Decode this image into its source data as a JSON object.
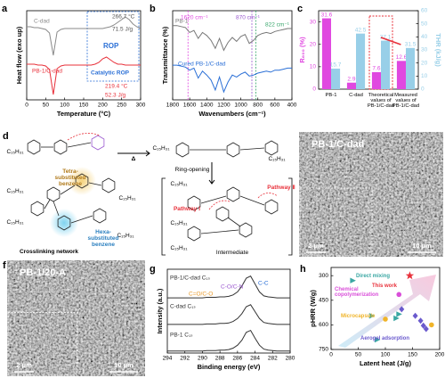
{
  "chart_data": [
    {
      "panel": "a",
      "type": "line",
      "xlabel": "Temperature (°C)",
      "ylabel": "Heat flow (exo up)",
      "x": [
        0,
        10,
        20,
        30,
        40,
        50,
        60,
        70,
        80,
        90,
        100,
        110,
        120,
        130,
        140,
        150,
        160,
        170,
        180,
        190,
        200,
        210,
        220,
        230,
        240,
        250,
        260,
        270,
        280,
        290,
        300
      ],
      "xlim": [
        0,
        300
      ],
      "xticks": [
        0,
        50,
        100,
        150,
        200,
        250,
        300
      ],
      "ylim": [
        0,
        10
      ],
      "series": [
        {
          "name": "C-dad",
          "color": "#8a8a8a",
          "values": [
            8.2,
            8.2,
            8.1,
            8.1,
            8.0,
            7.9,
            7.5,
            5.0,
            7.6,
            7.9,
            8.0,
            8.0,
            8.0,
            8.0,
            8.0,
            8.0,
            8.0,
            8.0,
            8.0,
            8.0,
            8.0,
            8.1,
            8.2,
            8.4,
            8.7,
            9.0,
            9.3,
            9.0,
            8.5,
            8.2,
            8.0
          ]
        },
        {
          "name": "PB-1/C-dad",
          "color": "#e8303a",
          "values": [
            4.0,
            4.0,
            4.0,
            3.9,
            3.9,
            3.8,
            3.4,
            0.6,
            3.5,
            3.8,
            3.9,
            3.9,
            3.9,
            3.9,
            3.9,
            3.9,
            3.9,
            3.9,
            4.0,
            4.2,
            4.6,
            4.8,
            4.5,
            4.2,
            4.0,
            4.0,
            3.9,
            3.9,
            3.9,
            3.9,
            3.9
          ]
        }
      ],
      "annotations": [
        {
          "text": "266.7 °C",
          "color": "#555555"
        },
        {
          "text": "71.5 J/g",
          "color": "#555555"
        },
        {
          "text": "219.4 °C",
          "color": "#e8303a"
        },
        {
          "text": "52.3 J/g",
          "color": "#e8303a"
        },
        {
          "text": "ROP",
          "color": "#2a6fd6"
        },
        {
          "text": "Catalytic ROP",
          "color": "#2a6fd6"
        }
      ]
    },
    {
      "panel": "b",
      "type": "line",
      "xlabel": "Wavenumbers (cm⁻¹)",
      "ylabel": "Transmittance (%)",
      "x": [
        1800,
        1750,
        1700,
        1650,
        1600,
        1550,
        1500,
        1450,
        1400,
        1350,
        1300,
        1250,
        1200,
        1150,
        1100,
        1050,
        1000,
        950,
        900,
        850,
        800,
        750,
        700,
        650,
        600,
        550,
        500,
        450,
        400
      ],
      "xlim": [
        1800,
        400
      ],
      "xticks": [
        1800,
        1600,
        1400,
        1200,
        1000,
        800,
        600,
        400
      ],
      "ylim": [
        0,
        9
      ],
      "markers": [
        1620,
        870,
        822
      ],
      "marker_colors": [
        "#e048e0",
        "#9b59d0",
        "#3aa76d"
      ],
      "series": [
        {
          "name": "PB-1",
          "color": "#777777",
          "values": [
            7.5,
            7.5,
            7.4,
            7.3,
            6.8,
            7.0,
            6.2,
            6.8,
            6.5,
            6.0,
            5.2,
            6.2,
            5.0,
            5.8,
            6.3,
            5.9,
            6.4,
            6.6,
            5.7,
            6.0,
            6.5,
            6.7,
            6.8,
            6.7,
            6.9,
            7.0,
            7.1,
            7.2,
            7.2
          ]
        },
        {
          "name": "Cured PB-1/C-dad",
          "color": "#2a6fd6",
          "values": [
            3.5,
            3.5,
            3.4,
            3.3,
            3.0,
            3.2,
            2.2,
            2.9,
            2.5,
            2.0,
            1.0,
            2.3,
            0.8,
            1.8,
            2.5,
            2.3,
            2.6,
            2.8,
            2.4,
            2.5,
            2.7,
            2.8,
            2.9,
            2.8,
            3.0,
            3.0,
            3.1,
            3.2,
            3.2
          ]
        }
      ],
      "annotations": [
        {
          "text": "1620 cm⁻¹",
          "color": "#e048e0"
        },
        {
          "text": "870 cm⁻¹",
          "color": "#9b59d0"
        },
        {
          "text": "822 cm⁻¹",
          "color": "#3aa76d"
        }
      ]
    },
    {
      "panel": "c",
      "type": "bar",
      "categories": [
        "PB-1",
        "C-dad",
        "Theoretical values of PB-1/C-dad",
        "Measured values of PB-1/C-dad"
      ],
      "ylim": [
        0,
        35
      ],
      "yticks": [
        0,
        10,
        20,
        30
      ],
      "y2lim": [
        0,
        60
      ],
      "y2ticks": [
        0,
        10,
        20,
        30,
        40,
        50,
        60
      ],
      "series": [
        {
          "name": "R₆₀₀ (%)",
          "color": "#e048e0",
          "values": [
            31.6,
            2.9,
            7.6,
            12.6
          ]
        },
        {
          "name": "THR (kJ/g)",
          "color": "#98cfe8",
          "axis": "y2",
          "values": [
            15.7,
            42.5,
            37.1,
            31.5
          ]
        }
      ]
    },
    {
      "panel": "g",
      "type": "line",
      "xlabel": "Binding energy (eV)",
      "ylabel": "Intensity (a.u.)",
      "x": [
        294,
        293.5,
        293,
        292.5,
        292,
        291.5,
        291,
        290.5,
        290,
        289.5,
        289,
        288.5,
        288,
        287.5,
        287,
        286.5,
        286,
        285.5,
        285,
        284.5,
        284,
        283.5,
        283,
        282.5,
        282,
        281.5,
        281,
        280.5,
        280
      ],
      "xlim": [
        294,
        280
      ],
      "xticks": [
        294,
        292,
        290,
        288,
        286,
        284,
        282,
        280
      ],
      "ylim": [
        0,
        8.5
      ],
      "series": [
        {
          "name": "PB-1/C-dad C₁ₛ",
          "color": "#333333",
          "values": [
            5.6,
            5.6,
            5.6,
            5.6,
            5.6,
            5.6,
            5.6,
            5.6,
            5.6,
            5.65,
            5.65,
            5.65,
            5.7,
            5.7,
            5.75,
            5.9,
            6.2,
            6.8,
            7.6,
            7.8,
            7.0,
            6.2,
            5.8,
            5.7,
            5.65,
            5.6,
            5.6,
            5.6,
            5.6
          ]
        },
        {
          "name": "C-dad C₁ₛ",
          "color": "#333333",
          "values": [
            2.9,
            2.9,
            2.9,
            2.9,
            2.9,
            2.9,
            2.9,
            2.9,
            2.9,
            2.95,
            2.95,
            2.95,
            3.0,
            3.0,
            3.05,
            3.2,
            3.5,
            4.0,
            4.7,
            4.9,
            4.2,
            3.5,
            3.1,
            3.0,
            2.95,
            2.9,
            2.9,
            2.9,
            2.9
          ]
        },
        {
          "name": "PB-1 C₁ₛ",
          "color": "#333333",
          "values": [
            0.2,
            0.2,
            0.2,
            0.2,
            0.2,
            0.2,
            0.2,
            0.2,
            0.2,
            0.25,
            0.25,
            0.25,
            0.3,
            0.3,
            0.35,
            0.5,
            0.8,
            1.3,
            2.1,
            2.3,
            1.5,
            0.8,
            0.4,
            0.3,
            0.25,
            0.2,
            0.2,
            0.2,
            0.2
          ]
        }
      ],
      "annotations": [
        {
          "text": "C=O/C-O",
          "color": "#e89a2a"
        },
        {
          "text": "C-O/C-N",
          "color": "#9b59d0"
        },
        {
          "text": "C-C",
          "color": "#2a6fd6"
        }
      ]
    },
    {
      "panel": "h",
      "type": "scatter",
      "xlabel": "Latent heat (J/g)",
      "ylabel": "pHRR (W/g)",
      "xlim": [
        0,
        200
      ],
      "xticks": [
        0,
        50,
        100,
        150,
        200
      ],
      "ylim": [
        250,
        750
      ],
      "yticks": [
        300,
        450,
        600,
        750
      ],
      "y_inverted": true,
      "series": [
        {
          "name": "Direct mixing",
          "color": "#3aa7a3",
          "marker": "triangle",
          "x": [
            40,
            125,
            75,
            120,
            85
          ],
          "y": [
            330,
            535,
            545,
            560,
            690
          ]
        },
        {
          "name": "Chemical copolymerization",
          "color": "#d94fd9",
          "marker": "circle",
          "x": [
            125
          ],
          "y": [
            415
          ]
        },
        {
          "name": "This work",
          "color": "#e8303a",
          "marker": "star",
          "x": [
            145
          ],
          "y": [
            300
          ]
        },
        {
          "name": "Microcapsule",
          "color": "#f0b429",
          "marker": "circle",
          "x": [
            100,
            185
          ],
          "y": [
            565,
            600
          ]
        },
        {
          "name": "Aerogel adsorption",
          "color": "#6a5acd",
          "marker": "diamond",
          "x": [
            130,
            155,
            165,
            170,
            175
          ],
          "y": [
            505,
            545,
            575,
            605,
            625
          ]
        }
      ]
    }
  ],
  "scheme": {
    "panel": "d",
    "labels": [
      "C₁₅H₃₁",
      "C₁₅H₃₁",
      "C₁₅H₃₁",
      "C₁₅H₃₁",
      "C₁₅H₃₁",
      "C₁₅H₃₁",
      "C₁₅H₃₁",
      "C₁₅H₃₁",
      "C₁₅H₃₁",
      "C₁₅H₃₁",
      "Δ",
      "Ring-opening",
      "Pathway Ⅰ",
      "Pathway Ⅱ",
      "Intermediate",
      "Tetra-substituted benzene",
      "Hexa-substituted benzene",
      "Crosslinking network"
    ]
  },
  "images": [
    {
      "panel": "e",
      "title": "PB-1/C-dad",
      "scale_bars": [
        "2 μm",
        "10 μm"
      ]
    },
    {
      "panel": "f",
      "title": "PB-1/20-A",
      "scale_bars": [
        "2 μm",
        "10 μm"
      ]
    }
  ]
}
